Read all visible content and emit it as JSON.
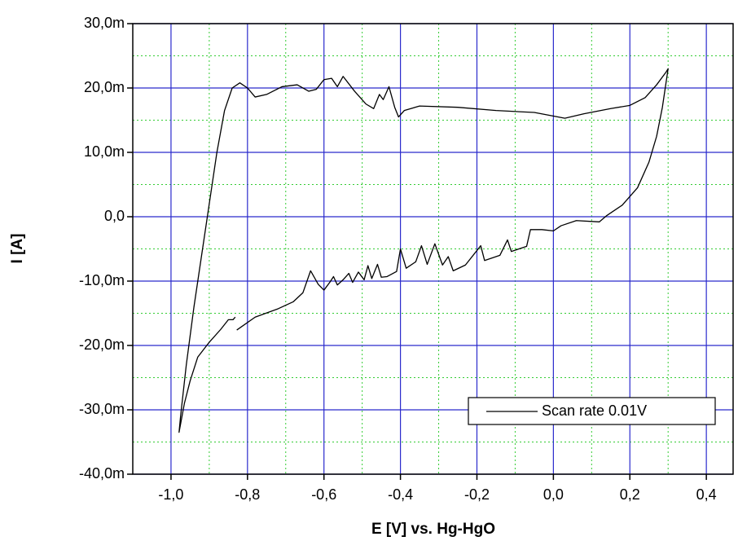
{
  "chart_data": {
    "type": "line",
    "xlabel": "E [V] vs. Hg-HgO",
    "ylabel": "I [A]",
    "xlim": [
      -1.1,
      0.47
    ],
    "ylim": [
      -0.04,
      0.03
    ],
    "xticks": [
      {
        "value": -1.0,
        "label": "-1,0"
      },
      {
        "value": -0.8,
        "label": "-0,8"
      },
      {
        "value": -0.6,
        "label": "-0,6"
      },
      {
        "value": -0.4,
        "label": "-0,4"
      },
      {
        "value": -0.2,
        "label": "-0,2"
      },
      {
        "value": 0.0,
        "label": "0,0"
      },
      {
        "value": 0.2,
        "label": "0,2"
      },
      {
        "value": 0.4,
        "label": "0,4"
      }
    ],
    "yticks": [
      {
        "value": -0.04,
        "label": "-40,0m"
      },
      {
        "value": -0.03,
        "label": "-30,0m"
      },
      {
        "value": -0.02,
        "label": "-20,0m"
      },
      {
        "value": -0.01,
        "label": "-10,0m"
      },
      {
        "value": 0,
        "label": "0,0"
      },
      {
        "value": 0.01,
        "label": "10,0m"
      },
      {
        "value": 0.02,
        "label": "20,0m"
      },
      {
        "value": 0.03,
        "label": "30,0m"
      }
    ],
    "grid": true,
    "minor_grid": true,
    "grid_color": "#2a2acc",
    "minor_grid_color": "#33cc33",
    "legend": "lower right",
    "series": [
      {
        "name": "Scan rate 0.01V",
        "color": "#000000",
        "x": [
          -0.828,
          -0.78,
          -0.72,
          -0.68,
          -0.655,
          -0.635,
          -0.615,
          -0.6,
          -0.585,
          -0.575,
          -0.565,
          -0.55,
          -0.535,
          -0.525,
          -0.51,
          -0.495,
          -0.485,
          -0.475,
          -0.46,
          -0.45,
          -0.435,
          -0.41,
          -0.4,
          -0.385,
          -0.36,
          -0.345,
          -0.33,
          -0.31,
          -0.29,
          -0.275,
          -0.262,
          -0.23,
          -0.19,
          -0.18,
          -0.14,
          -0.12,
          -0.11,
          -0.07,
          -0.06,
          -0.03,
          0.0,
          0.02,
          0.06,
          0.12,
          0.14,
          0.18,
          0.22,
          0.25,
          0.27,
          0.285,
          0.3,
          0.295,
          0.27,
          0.24,
          0.2,
          0.15,
          0.08,
          0.03,
          -0.05,
          -0.15,
          -0.25,
          -0.35,
          -0.39,
          -0.405,
          -0.415,
          -0.43,
          -0.445,
          -0.455,
          -0.47,
          -0.49,
          -0.52,
          -0.55,
          -0.565,
          -0.58,
          -0.6,
          -0.62,
          -0.64,
          -0.67,
          -0.71,
          -0.75,
          -0.78,
          -0.8,
          -0.82,
          -0.84,
          -0.86,
          -0.88,
          -0.9,
          -0.92,
          -0.94,
          -0.96,
          -0.975,
          -0.979,
          -0.965,
          -0.95,
          -0.93,
          -0.9,
          -0.87,
          -0.85,
          -0.838,
          -0.832
        ],
        "values": [
          -0.0176,
          -0.0156,
          -0.0143,
          -0.0132,
          -0.0118,
          -0.0084,
          -0.0105,
          -0.0114,
          -0.0102,
          -0.0093,
          -0.0106,
          -0.0098,
          -0.0088,
          -0.0102,
          -0.0086,
          -0.0098,
          -0.0076,
          -0.0096,
          -0.0074,
          -0.0094,
          -0.0093,
          -0.0085,
          -0.005,
          -0.008,
          -0.007,
          -0.0045,
          -0.0074,
          -0.0042,
          -0.0075,
          -0.0062,
          -0.0084,
          -0.0075,
          -0.0045,
          -0.0068,
          -0.006,
          -0.0036,
          -0.0054,
          -0.0046,
          -0.002,
          -0.002,
          -0.0022,
          -0.0014,
          -0.0006,
          -0.0008,
          0.0002,
          0.0018,
          0.0045,
          0.0085,
          0.0125,
          0.017,
          0.023,
          0.0225,
          0.0205,
          0.0185,
          0.0173,
          0.0168,
          0.016,
          0.0153,
          0.0162,
          0.0165,
          0.017,
          0.0172,
          0.0165,
          0.0155,
          0.017,
          0.0202,
          0.0182,
          0.019,
          0.0168,
          0.0175,
          0.0195,
          0.0218,
          0.0202,
          0.0215,
          0.0213,
          0.0198,
          0.0195,
          0.0205,
          0.0202,
          0.019,
          0.0186,
          0.02,
          0.0208,
          0.02,
          0.0165,
          0.01,
          0.002,
          -0.006,
          -0.014,
          -0.023,
          -0.031,
          -0.0335,
          -0.029,
          -0.0255,
          -0.0218,
          -0.0195,
          -0.0175,
          -0.016,
          -0.016,
          -0.0156
        ]
      }
    ]
  }
}
